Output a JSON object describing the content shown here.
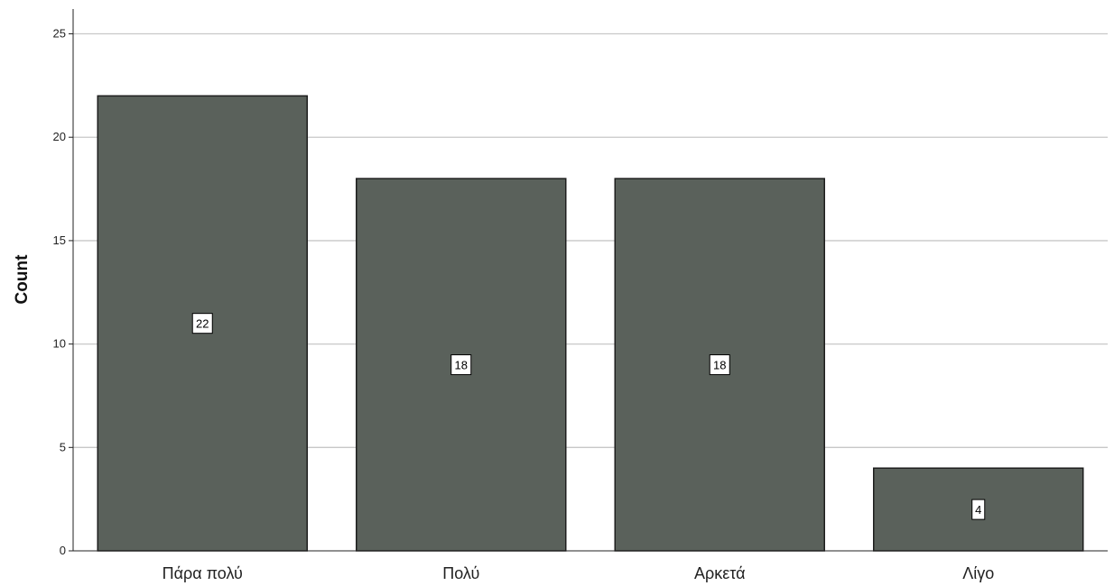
{
  "chart_data": {
    "type": "bar",
    "categories": [
      "Πάρα πολύ",
      "Πολύ",
      "Αρκετά",
      "Λίγο"
    ],
    "values": [
      22,
      18,
      18,
      4
    ],
    "data_labels": [
      "22",
      "18",
      "18",
      "4"
    ],
    "title": "",
    "xlabel": "",
    "ylabel": "Count",
    "ylim": [
      0,
      25
    ],
    "yticks": [
      0,
      5,
      10,
      15,
      20,
      25
    ],
    "grid": true,
    "legend": "none",
    "bar_color": "#5a615b",
    "bar_edge_color": "#1e1e1e",
    "gridline_color": "#c8c8c8"
  }
}
